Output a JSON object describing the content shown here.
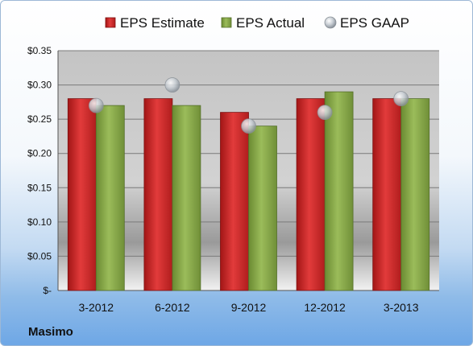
{
  "company": "Masimo",
  "chart_data": {
    "type": "bar",
    "categories": [
      "3-2012",
      "6-2012",
      "9-2012",
      "12-2012",
      "3-2013"
    ],
    "series": [
      {
        "name": "EPS Estimate",
        "kind": "bar",
        "color": "#cc2a2a",
        "values": [
          0.28,
          0.28,
          0.26,
          0.28,
          0.28
        ]
      },
      {
        "name": "EPS Actual",
        "kind": "bar",
        "color": "#86a94a",
        "values": [
          0.27,
          0.27,
          0.24,
          0.29,
          0.28
        ]
      },
      {
        "name": "EPS GAAP",
        "kind": "marker",
        "color": "#b0b8c0",
        "values": [
          0.27,
          0.3,
          0.24,
          0.26,
          0.28
        ]
      }
    ],
    "yticks": [
      "$-",
      "$0.05",
      "$0.10",
      "$0.15",
      "$0.20",
      "$0.25",
      "$0.30",
      "$0.35"
    ],
    "ylim": [
      0,
      0.35
    ],
    "grid": true,
    "legend": "top"
  }
}
